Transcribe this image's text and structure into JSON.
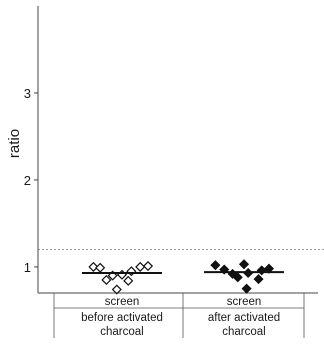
{
  "chart_data": {
    "type": "scatter",
    "ylabel": "ratio",
    "ylim": [
      0.7,
      4.0
    ],
    "yticks": [
      "1",
      "2",
      "3"
    ],
    "yticks_values": [
      1,
      2,
      3
    ],
    "reference_line": {
      "y": 1.2,
      "style": "dotted",
      "color": "#9a9a9a"
    },
    "categories": [
      {
        "line1": "screen",
        "line2": "before activated",
        "line3": "charcoal"
      },
      {
        "line1": "screen",
        "line2": "after activated",
        "line3": "charcoal"
      }
    ],
    "series": [
      {
        "marker": "diamond-open",
        "median": 0.93,
        "points": [
          {
            "dx": -0.55,
            "y": 1.0
          },
          {
            "dx": -0.42,
            "y": 0.99
          },
          {
            "dx": -0.3,
            "y": 0.85
          },
          {
            "dx": -0.18,
            "y": 0.9
          },
          {
            "dx": -0.1,
            "y": 0.74
          },
          {
            "dx": 0.0,
            "y": 0.91
          },
          {
            "dx": 0.12,
            "y": 0.84
          },
          {
            "dx": 0.18,
            "y": 0.95
          },
          {
            "dx": 0.35,
            "y": 1.0
          },
          {
            "dx": 0.5,
            "y": 1.01
          }
        ]
      },
      {
        "marker": "diamond-filled",
        "median": 0.94,
        "points": [
          {
            "dx": -0.55,
            "y": 1.02
          },
          {
            "dx": -0.38,
            "y": 0.97
          },
          {
            "dx": -0.22,
            "y": 0.92
          },
          {
            "dx": -0.12,
            "y": 0.88
          },
          {
            "dx": 0.0,
            "y": 1.03
          },
          {
            "dx": 0.05,
            "y": 0.75
          },
          {
            "dx": 0.08,
            "y": 0.93
          },
          {
            "dx": 0.28,
            "y": 0.86
          },
          {
            "dx": 0.34,
            "y": 0.96
          },
          {
            "dx": 0.48,
            "y": 0.98
          }
        ]
      }
    ]
  }
}
